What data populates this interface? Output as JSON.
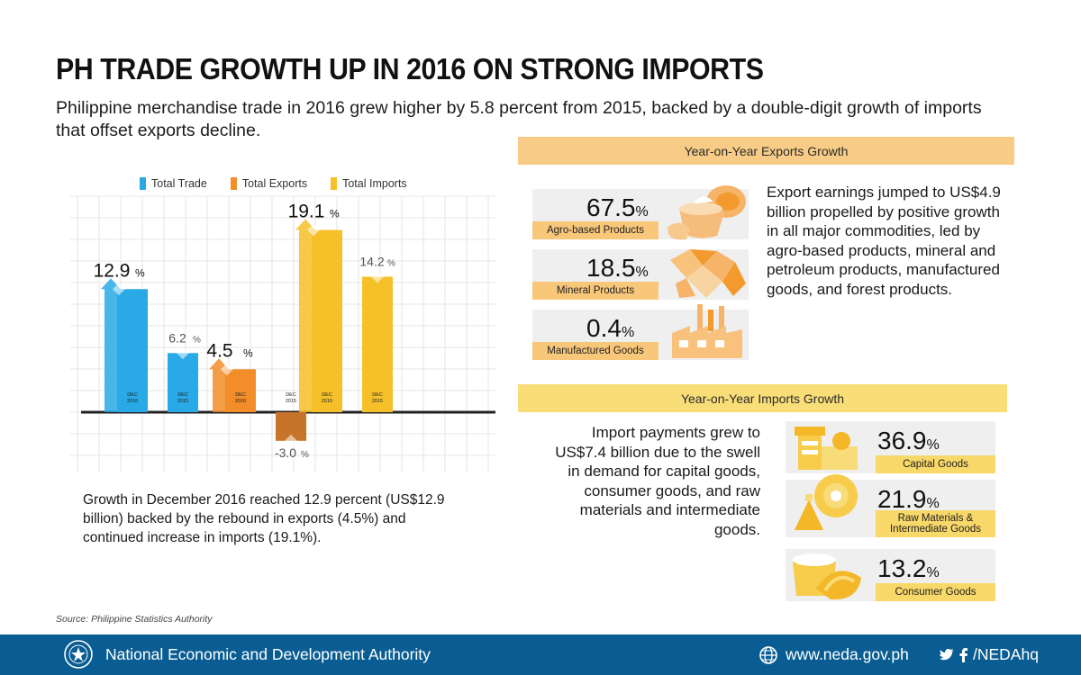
{
  "title": "PH TRADE GROWTH UP IN 2016 ON STRONG IMPORTS",
  "subtitle": "Philippine merchandise trade in 2016 grew higher by 5.8 percent from 2015, backed by a double-digit growth of imports that offset exports decline.",
  "chart_data": {
    "type": "bar",
    "title": "",
    "xlabel": "",
    "ylabel": "",
    "ylim": [
      -5,
      22
    ],
    "legend": [
      "Total Trade",
      "Total Exports",
      "Total Imports"
    ],
    "categories": [
      "DEC 2016",
      "DEC 2015"
    ],
    "series": [
      {
        "name": "Total Trade",
        "color": "#29a9e6",
        "values": [
          12.9,
          6.2
        ],
        "labels": [
          "12.9",
          "6.2"
        ]
      },
      {
        "name": "Total Exports",
        "color": "#f28d29",
        "values": [
          4.5,
          -3.0
        ],
        "labels": [
          "4.5",
          "-3.0"
        ]
      },
      {
        "name": "Total Imports",
        "color": "#f5c028",
        "values": [
          19.1,
          14.2
        ],
        "labels": [
          "19.1",
          "14.2"
        ]
      }
    ],
    "pct_symbol": "%"
  },
  "chart_note": "Growth in December 2016 reached 12.9 percent (US$12.9 billion) backed by the rebound in exports (4.5%) and continued increase in imports (19.1%).",
  "source": "Source: Philippine Statistics Authority",
  "exports": {
    "header": "Year-on-Year Exports Growth",
    "cards": [
      {
        "value": "67.5",
        "pct": "%",
        "label": "Agro-based Products",
        "icon": "agro-icon"
      },
      {
        "value": "18.5",
        "pct": "%",
        "label": "Mineral Products",
        "icon": "mineral-icon"
      },
      {
        "value": "0.4",
        "pct": "%",
        "label": "Manufactured Goods",
        "icon": "factory-icon"
      }
    ],
    "paragraph": "Export earnings jumped to US$4.9 billion propelled by positive growth in all major commodities, led by agro-based products, mineral and petroleum products, manufactured goods, and forest products."
  },
  "imports": {
    "header": "Year-on-Year Imports Growth",
    "cards": [
      {
        "value": "36.9",
        "pct": "%",
        "label": "Capital Goods",
        "icon": "machine-icon"
      },
      {
        "value": "21.9",
        "pct": "%",
        "label": "Raw Materials &",
        "label2": "Intermediate Goods",
        "icon": "raw-materials-icon"
      },
      {
        "value": "13.2",
        "pct": "%",
        "label": "Consumer Goods",
        "icon": "consumer-goods-icon"
      }
    ],
    "paragraph": "Import payments grew to US$7.4 billion due to the swell in demand for capital goods, consumer goods, and raw materials and intermediate goods."
  },
  "footer": {
    "org": "National Economic and Development Authority",
    "site": "www.neda.gov.ph",
    "social": "/NEDAhq",
    "colors": {
      "bg": "#0a5d93"
    }
  }
}
